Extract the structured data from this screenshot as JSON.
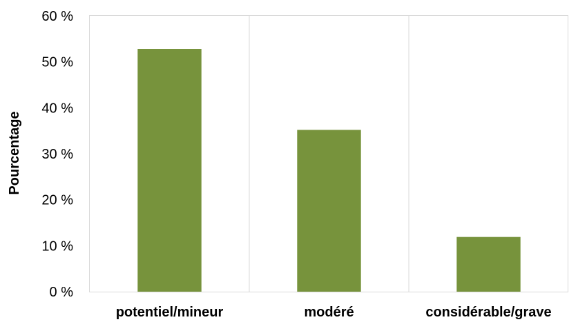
{
  "chart_data": {
    "type": "bar",
    "categories": [
      "potentiel/mineur",
      "modéré",
      "considérable/grave"
    ],
    "values": [
      52.8,
      35.2,
      11.9
    ],
    "title": "",
    "xlabel": "",
    "ylabel": "Pourcentage",
    "ylim": [
      0,
      60
    ],
    "yticks": [
      0,
      10,
      20,
      30,
      40,
      50,
      60
    ],
    "ytick_labels": [
      "0 %",
      "10 %",
      "20 %",
      "30 %",
      "40 %",
      "50 %",
      "60 %"
    ],
    "grid": "vertical separators between categories",
    "legend": "none",
    "bar_color": "#77933C",
    "grid_color": "#D9D9D9"
  }
}
